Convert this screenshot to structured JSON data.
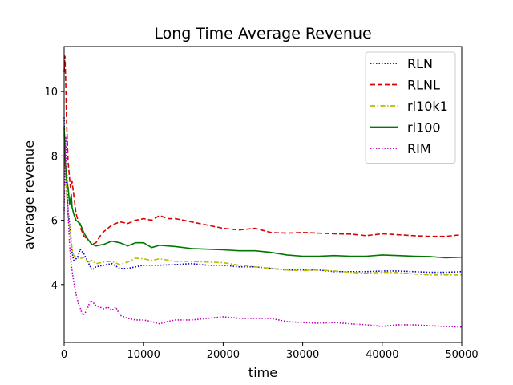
{
  "chart_data": {
    "type": "line",
    "title": "Long Time Average Revenue",
    "xlabel": "time",
    "ylabel": "average revenue",
    "xlim": [
      0,
      50000
    ],
    "ylim": [
      2.2,
      11.4
    ],
    "xticks": [
      "0",
      "10000",
      "20000",
      "30000",
      "40000",
      "50000"
    ],
    "yticks": [
      "4",
      "6",
      "8",
      "10"
    ],
    "xtick_values": [
      0,
      10000,
      20000,
      30000,
      40000,
      50000
    ],
    "ytick_values": [
      4,
      6,
      8,
      10
    ],
    "grid": false,
    "legend_position": "top-right",
    "series": [
      {
        "name": "RLN",
        "color": "#0000cc",
        "style": "dotted",
        "points": [
          [
            0,
            9.2
          ],
          [
            150,
            7.6
          ],
          [
            300,
            6.9
          ],
          [
            500,
            6.3
          ],
          [
            800,
            5.6
          ],
          [
            1000,
            5.0
          ],
          [
            1200,
            4.75
          ],
          [
            1500,
            4.8
          ],
          [
            1800,
            4.9
          ],
          [
            2000,
            5.1
          ],
          [
            2500,
            4.95
          ],
          [
            3000,
            4.7
          ],
          [
            3500,
            4.45
          ],
          [
            4000,
            4.55
          ],
          [
            5000,
            4.6
          ],
          [
            6000,
            4.65
          ],
          [
            7000,
            4.5
          ],
          [
            8000,
            4.5
          ],
          [
            9000,
            4.55
          ],
          [
            10000,
            4.6
          ],
          [
            12000,
            4.6
          ],
          [
            14000,
            4.62
          ],
          [
            16000,
            4.65
          ],
          [
            18000,
            4.6
          ],
          [
            20000,
            4.6
          ],
          [
            22000,
            4.55
          ],
          [
            24000,
            4.55
          ],
          [
            26000,
            4.5
          ],
          [
            28000,
            4.45
          ],
          [
            30000,
            4.45
          ],
          [
            32000,
            4.45
          ],
          [
            34000,
            4.4
          ],
          [
            36000,
            4.4
          ],
          [
            38000,
            4.4
          ],
          [
            40000,
            4.42
          ],
          [
            42000,
            4.42
          ],
          [
            44000,
            4.4
          ],
          [
            46000,
            4.38
          ],
          [
            48000,
            4.38
          ],
          [
            50000,
            4.4
          ]
        ]
      },
      {
        "name": "RLNL",
        "color": "#dd0000",
        "style": "dashed",
        "points": [
          [
            0,
            10.6
          ],
          [
            100,
            11.1
          ],
          [
            200,
            10.3
          ],
          [
            300,
            9.1
          ],
          [
            500,
            7.8
          ],
          [
            800,
            7.0
          ],
          [
            1000,
            7.2
          ],
          [
            1200,
            6.8
          ],
          [
            1500,
            6.2
          ],
          [
            2000,
            5.8
          ],
          [
            2500,
            5.5
          ],
          [
            3000,
            5.4
          ],
          [
            3500,
            5.25
          ],
          [
            4000,
            5.3
          ],
          [
            4500,
            5.5
          ],
          [
            5000,
            5.65
          ],
          [
            6000,
            5.85
          ],
          [
            7000,
            5.95
          ],
          [
            8000,
            5.9
          ],
          [
            9000,
            6.0
          ],
          [
            10000,
            6.05
          ],
          [
            11000,
            6.0
          ],
          [
            12000,
            6.15
          ],
          [
            13000,
            6.05
          ],
          [
            14000,
            6.05
          ],
          [
            15000,
            6.0
          ],
          [
            16000,
            5.95
          ],
          [
            18000,
            5.85
          ],
          [
            20000,
            5.75
          ],
          [
            22000,
            5.7
          ],
          [
            24000,
            5.75
          ],
          [
            26000,
            5.62
          ],
          [
            28000,
            5.6
          ],
          [
            30000,
            5.62
          ],
          [
            32000,
            5.6
          ],
          [
            34000,
            5.58
          ],
          [
            36000,
            5.57
          ],
          [
            38000,
            5.52
          ],
          [
            40000,
            5.58
          ],
          [
            42000,
            5.55
          ],
          [
            44000,
            5.52
          ],
          [
            46000,
            5.5
          ],
          [
            48000,
            5.5
          ],
          [
            50000,
            5.55
          ]
        ]
      },
      {
        "name": "rl10k1",
        "color": "#bbbb00",
        "style": "dashdot",
        "points": [
          [
            0,
            8.7
          ],
          [
            150,
            7.5
          ],
          [
            300,
            6.9
          ],
          [
            500,
            6.1
          ],
          [
            800,
            5.6
          ],
          [
            1000,
            5.1
          ],
          [
            1200,
            4.9
          ],
          [
            1500,
            4.85
          ],
          [
            2000,
            4.8
          ],
          [
            2500,
            4.85
          ],
          [
            3000,
            4.7
          ],
          [
            3500,
            4.75
          ],
          [
            4000,
            4.65
          ],
          [
            5000,
            4.7
          ],
          [
            6000,
            4.72
          ],
          [
            7000,
            4.62
          ],
          [
            8000,
            4.7
          ],
          [
            9000,
            4.82
          ],
          [
            10000,
            4.8
          ],
          [
            11000,
            4.75
          ],
          [
            12000,
            4.8
          ],
          [
            14000,
            4.72
          ],
          [
            16000,
            4.72
          ],
          [
            18000,
            4.7
          ],
          [
            20000,
            4.68
          ],
          [
            22000,
            4.6
          ],
          [
            24000,
            4.55
          ],
          [
            26000,
            4.5
          ],
          [
            28000,
            4.45
          ],
          [
            30000,
            4.43
          ],
          [
            32000,
            4.45
          ],
          [
            34000,
            4.42
          ],
          [
            36000,
            4.38
          ],
          [
            38000,
            4.35
          ],
          [
            40000,
            4.38
          ],
          [
            42000,
            4.37
          ],
          [
            44000,
            4.33
          ],
          [
            46000,
            4.3
          ],
          [
            48000,
            4.3
          ],
          [
            50000,
            4.3
          ]
        ]
      },
      {
        "name": "rl100",
        "color": "#007700",
        "style": "solid",
        "points": [
          [
            0,
            8.9
          ],
          [
            150,
            7.8
          ],
          [
            300,
            7.3
          ],
          [
            500,
            7.0
          ],
          [
            700,
            6.5
          ],
          [
            900,
            6.8
          ],
          [
            1000,
            6.4
          ],
          [
            1200,
            6.2
          ],
          [
            1500,
            6.0
          ],
          [
            2000,
            5.9
          ],
          [
            2500,
            5.6
          ],
          [
            3000,
            5.4
          ],
          [
            3500,
            5.25
          ],
          [
            4000,
            5.2
          ],
          [
            5000,
            5.25
          ],
          [
            6000,
            5.35
          ],
          [
            7000,
            5.3
          ],
          [
            8000,
            5.2
          ],
          [
            9000,
            5.3
          ],
          [
            10000,
            5.3
          ],
          [
            11000,
            5.15
          ],
          [
            12000,
            5.22
          ],
          [
            14000,
            5.18
          ],
          [
            16000,
            5.12
          ],
          [
            18000,
            5.1
          ],
          [
            20000,
            5.08
          ],
          [
            22000,
            5.05
          ],
          [
            24000,
            5.05
          ],
          [
            26000,
            5.0
          ],
          [
            28000,
            4.92
          ],
          [
            30000,
            4.88
          ],
          [
            32000,
            4.88
          ],
          [
            34000,
            4.9
          ],
          [
            36000,
            4.88
          ],
          [
            38000,
            4.88
          ],
          [
            40000,
            4.92
          ],
          [
            42000,
            4.9
          ],
          [
            44000,
            4.88
          ],
          [
            46000,
            4.87
          ],
          [
            48000,
            4.83
          ],
          [
            50000,
            4.85
          ]
        ]
      },
      {
        "name": "RIM",
        "color": "#bb00bb",
        "style": "dotted",
        "points": [
          [
            0,
            6.2
          ],
          [
            100,
            8.0
          ],
          [
            200,
            8.6
          ],
          [
            300,
            7.8
          ],
          [
            500,
            6.2
          ],
          [
            700,
            5.2
          ],
          [
            900,
            4.6
          ],
          [
            1200,
            4.1
          ],
          [
            1500,
            3.7
          ],
          [
            1800,
            3.4
          ],
          [
            2000,
            3.3
          ],
          [
            2300,
            3.05
          ],
          [
            2600,
            3.1
          ],
          [
            3000,
            3.3
          ],
          [
            3300,
            3.5
          ],
          [
            3600,
            3.45
          ],
          [
            4000,
            3.35
          ],
          [
            4500,
            3.3
          ],
          [
            5000,
            3.25
          ],
          [
            5500,
            3.3
          ],
          [
            6000,
            3.2
          ],
          [
            6500,
            3.3
          ],
          [
            7000,
            3.05
          ],
          [
            8000,
            2.95
          ],
          [
            9000,
            2.9
          ],
          [
            10000,
            2.9
          ],
          [
            11000,
            2.85
          ],
          [
            12000,
            2.78
          ],
          [
            13000,
            2.85
          ],
          [
            14000,
            2.9
          ],
          [
            16000,
            2.9
          ],
          [
            18000,
            2.95
          ],
          [
            20000,
            3.0
          ],
          [
            22000,
            2.95
          ],
          [
            24000,
            2.95
          ],
          [
            26000,
            2.95
          ],
          [
            28000,
            2.85
          ],
          [
            30000,
            2.82
          ],
          [
            32000,
            2.8
          ],
          [
            34000,
            2.82
          ],
          [
            36000,
            2.78
          ],
          [
            38000,
            2.75
          ],
          [
            40000,
            2.7
          ],
          [
            42000,
            2.75
          ],
          [
            44000,
            2.75
          ],
          [
            46000,
            2.72
          ],
          [
            48000,
            2.7
          ],
          [
            50000,
            2.68
          ]
        ]
      }
    ]
  }
}
